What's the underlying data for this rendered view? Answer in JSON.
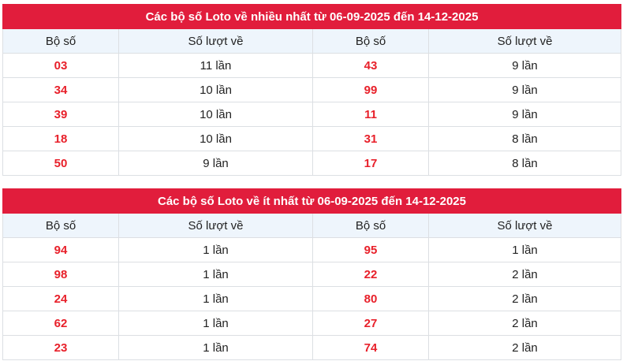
{
  "tables": [
    {
      "title": "Các bộ số Loto về nhiều nhất từ 06-09-2025 đến 14-12-2025",
      "headers": [
        "Bộ số",
        "Số lượt về",
        "Bộ số",
        "Số lượt về"
      ],
      "rows": [
        [
          "03",
          "11 lần",
          "43",
          "9 lần"
        ],
        [
          "34",
          "10 lần",
          "99",
          "9 lần"
        ],
        [
          "39",
          "10 lần",
          "11",
          "9 lần"
        ],
        [
          "18",
          "10 lần",
          "31",
          "8 lần"
        ],
        [
          "50",
          "9 lần",
          "17",
          "8 lần"
        ]
      ]
    },
    {
      "title": "Các bộ số Loto về ít nhất từ 06-09-2025 đến 14-12-2025",
      "headers": [
        "Bộ số",
        "Số lượt về",
        "Bộ số",
        "Số lượt về"
      ],
      "rows": [
        [
          "94",
          "1 lần",
          "95",
          "1 lần"
        ],
        [
          "98",
          "1 lần",
          "22",
          "2 lần"
        ],
        [
          "24",
          "1 lần",
          "80",
          "2 lần"
        ],
        [
          "62",
          "1 lần",
          "27",
          "2 lần"
        ],
        [
          "23",
          "1 lần",
          "74",
          "2 lần"
        ]
      ]
    }
  ],
  "colors": {
    "header": "#e11d3c",
    "number": "#e8202a",
    "subheader": "#eef5fc"
  }
}
